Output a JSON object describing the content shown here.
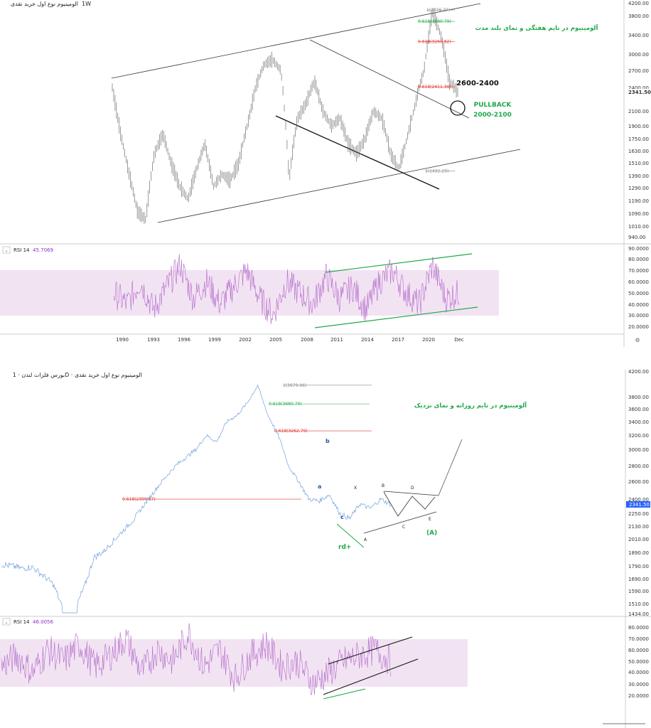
{
  "top_panel": {
    "header": "الومینیوم نوع اول خرید نقدی",
    "timeframe": "1W",
    "title_annotation": "آلومینیوم در تایم هفتگی و نمای بلند مدت",
    "target_label": "2600-2400",
    "pullback_label": "PULLBACK",
    "pullback_range": "2000-2100",
    "fib_levels": [
      {
        "label": "1(3976.77)",
        "value": 3976.77,
        "color": "#888888"
      },
      {
        "label": "0.618(3680.79)",
        "value": 3680.79,
        "color": "#1fa84a"
      },
      {
        "label": "0.618(3260.82)",
        "value": 3260.82,
        "color": "#e03030"
      },
      {
        "label": "0.618(2411.30)",
        "value": 2411.3,
        "color": "#e03030"
      },
      {
        "label": "1(1432.23)",
        "value": 1432.23,
        "color": "#888888"
      }
    ],
    "current_price": "2341.50",
    "price_ticks": [
      "4200.00",
      "3800.00",
      "3400.00",
      "3000.00",
      "2700.00",
      "2400.00",
      "2100.00",
      "1900.00",
      "1750.00",
      "1630.00",
      "1510.00",
      "1390.00",
      "1290.00",
      "1190.00",
      "1090.00",
      "1010.00",
      "940.00"
    ],
    "year_ticks": [
      "1990",
      "1993",
      "1996",
      "1999",
      "2002",
      "2005",
      "2008",
      "2011",
      "2014",
      "2017",
      "2020",
      "Dec"
    ],
    "rsi": {
      "label": "RSI 14",
      "value": "45.7069",
      "ticks": [
        "90.0000",
        "80.0000",
        "70.0000",
        "60.0000",
        "50.0000",
        "40.0000",
        "30.0000",
        "20.0000"
      ]
    }
  },
  "bottom_panel": {
    "header": "بورس فلزات لندن · 1D · الومینیوم نوع اول خرید نقدی",
    "title_annotation": "آلومینیوم در تایم روزانه  و نمای نزدیک",
    "fib_levels": [
      {
        "label": "1(3979.96)",
        "value": 3979.96,
        "color": "#888888"
      },
      {
        "label": "0.618(3680.79)",
        "value": 3680.79,
        "color": "#1fa84a"
      },
      {
        "label": "0.618(3262.79)",
        "value": 3262.79,
        "color": "#e03030"
      },
      {
        "label": "0.618(2399.87)",
        "value": 2399.87,
        "color": "#e03030"
      }
    ],
    "waves": {
      "b": "b",
      "a": "a",
      "c": "c",
      "x": "X",
      "A": "A",
      "B": "B",
      "C": "C",
      "D": "D",
      "E": "E",
      "bigA": "(A)",
      "rd": "rd+"
    },
    "current_price": "2341.50",
    "bottom_label": "1434.00",
    "price_ticks": [
      "4200.00",
      "3800.00",
      "3600.00",
      "3400.00",
      "3200.00",
      "3000.00",
      "2800.00",
      "2600.00",
      "2400.00",
      "2250.00",
      "2130.00",
      "2010.00",
      "1890.00",
      "1790.00",
      "1690.00",
      "1590.00",
      "1510.00"
    ],
    "rsi": {
      "label": "RSI 14",
      "value": "46.0056",
      "ticks": [
        "80.0000",
        "70.0000",
        "60.0000",
        "50.0000",
        "40.0000",
        "30.0000",
        "20.0000"
      ]
    }
  },
  "chart_data": [
    {
      "type": "line",
      "title": "آلومینیوم در تایم هفتگی و نمای بلند مدت",
      "timeframe": "1W",
      "x": [
        "1990",
        "1993",
        "1996",
        "1999",
        "2002",
        "2005",
        "2008",
        "2011",
        "2014",
        "2017",
        "2020",
        "Dec"
      ],
      "series": [
        {
          "values": [
            1600,
            1100,
            1800,
            1300,
            1350,
            2600,
            2900,
            2100,
            1700,
            2100,
            1550,
            2341.5
          ]
        }
      ],
      "ylim": [
        940,
        4200
      ],
      "fib_levels": [
        3976.77,
        3680.79,
        3260.82,
        2411.3,
        1432.23
      ]
    },
    {
      "type": "line",
      "title": "آلومینیوم در تایم روزانه  و نمای نزدیک",
      "timeframe": "1D",
      "series": [
        {
          "values": [
            1800,
            1760,
            1500,
            1450,
            2000,
            2400,
            2800,
            3000,
            3400,
            3980,
            3300,
            2600,
            2350,
            2200,
            2400,
            2250,
            2341.5
          ]
        }
      ],
      "ylim": [
        1434,
        4200
      ],
      "fib_levels": [
        3979.96,
        3680.79,
        3262.79,
        2399.87
      ]
    }
  ]
}
